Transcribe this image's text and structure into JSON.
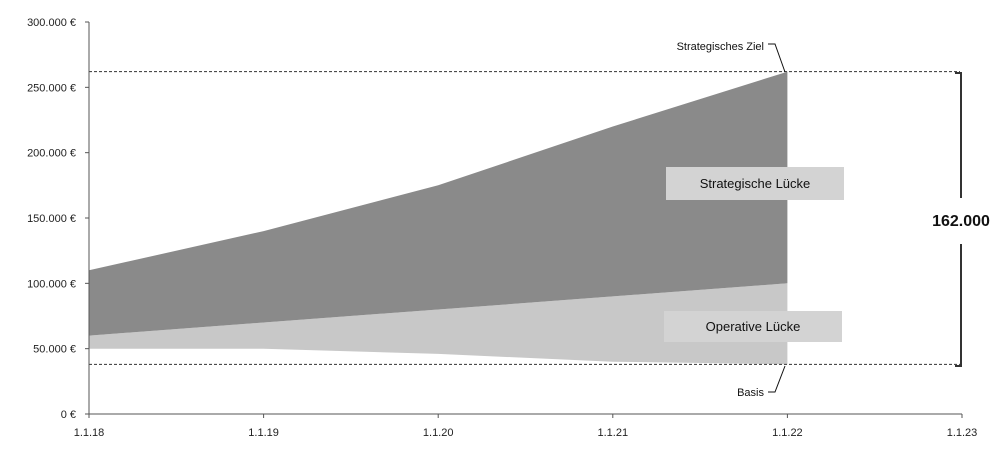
{
  "chart_data": {
    "type": "area",
    "title": "",
    "xlabel": "",
    "ylabel": "",
    "x": [
      "1.1.18",
      "1.1.19",
      "1.1.20",
      "1.1.21",
      "1.1.22"
    ],
    "x_ticks": [
      "1.1.18",
      "1.1.19",
      "1.1.20",
      "1.1.21",
      "1.1.22",
      "1.1.23"
    ],
    "ylim": [
      0,
      300000
    ],
    "y_ticks": [
      0,
      50000,
      100000,
      150000,
      200000,
      250000,
      300000
    ],
    "y_tick_labels": [
      "0 €",
      "50.000 €",
      "100.000 €",
      "150.000 €",
      "200.000 €",
      "250.000 €",
      "300.000 €"
    ],
    "series": [
      {
        "values": [
          50000,
          50000,
          46000,
          40000,
          38000
        ],
        "color": "#ffffff"
      },
      {
        "values": [
          60000,
          70000,
          80000,
          90000,
          100000
        ],
        "color": "#c8c8c8"
      },
      {
        "values": [
          110000,
          140000,
          175000,
          220000,
          262000
        ],
        "color": "#8a8a8a"
      }
    ],
    "reference_lines": [
      {
        "label": "Strategisches Ziel",
        "value": 262000
      },
      {
        "label": "Basis",
        "value": 38000
      }
    ],
    "annotations": {
      "strategic_gap_label": "Strategische Lücke",
      "operative_gap_label": "Operative Lücke",
      "gap_value": "162.000"
    },
    "grid": false,
    "colors": {
      "strategic": "#8a8a8a",
      "operative": "#c8c8c8",
      "label_box": "#d3d3d3",
      "axis": "#555555"
    }
  }
}
